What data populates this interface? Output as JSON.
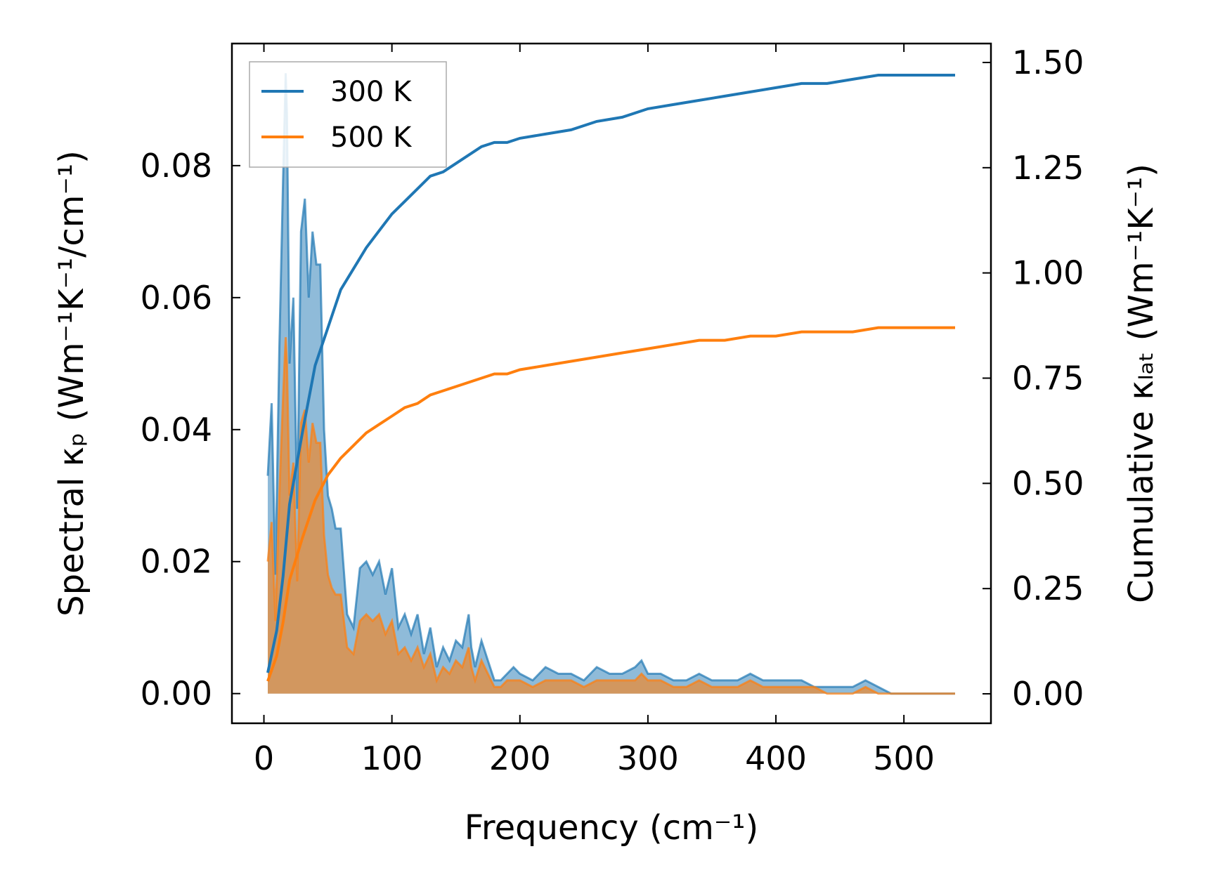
{
  "chart_data": {
    "type": "area",
    "xlabel": "Frequency (cm⁻¹)",
    "ylabel_left": "Spectral κₚ (Wm⁻¹K⁻¹/cm⁻¹)",
    "ylabel_right": "Cumulative κₗₐₜ (Wm⁻¹K⁻¹)",
    "xlim": [
      -25,
      568
    ],
    "ylim_left": [
      -0.0045,
      0.0985
    ],
    "ylim_right": [
      -0.07,
      1.545
    ],
    "x_ticks": [
      0,
      100,
      200,
      300,
      400,
      500
    ],
    "x_tick_labels": [
      "0",
      "100",
      "200",
      "300",
      "400",
      "500"
    ],
    "y_left_ticks": [
      0.0,
      0.02,
      0.04,
      0.06,
      0.08
    ],
    "y_left_tick_labels": [
      "0.00",
      "0.02",
      "0.04",
      "0.06",
      "0.08"
    ],
    "y_right_ticks": [
      0.0,
      0.25,
      0.5,
      0.75,
      1.0,
      1.25,
      1.5
    ],
    "y_right_tick_labels": [
      "0.00",
      "0.25",
      "0.50",
      "0.75",
      "1.00",
      "1.25",
      "1.50"
    ],
    "legend": {
      "position": "top-left",
      "entries": [
        "300 K",
        "500 K"
      ]
    },
    "grid": false,
    "series": [
      {
        "name": "300 K",
        "color": "#1f77b4",
        "fill_color": "#1f77b4",
        "spectral": {
          "x": [
            3,
            6,
            9,
            12,
            15,
            17,
            18,
            20,
            23,
            26,
            29,
            32,
            35,
            38,
            41,
            44,
            47,
            50,
            53,
            56,
            60,
            65,
            70,
            75,
            80,
            85,
            90,
            95,
            100,
            105,
            110,
            115,
            120,
            125,
            130,
            135,
            140,
            145,
            150,
            155,
            160,
            162,
            165,
            170,
            175,
            180,
            185,
            190,
            195,
            200,
            210,
            220,
            230,
            240,
            250,
            260,
            270,
            280,
            290,
            295,
            300,
            310,
            320,
            330,
            340,
            350,
            360,
            370,
            380,
            390,
            400,
            410,
            420,
            430,
            440,
            450,
            460,
            470,
            480,
            490,
            500,
            520,
            540
          ],
          "y": [
            0.033,
            0.044,
            0.018,
            0.052,
            0.078,
            0.094,
            0.088,
            0.05,
            0.06,
            0.028,
            0.07,
            0.075,
            0.06,
            0.07,
            0.065,
            0.065,
            0.04,
            0.03,
            0.028,
            0.025,
            0.025,
            0.012,
            0.01,
            0.019,
            0.02,
            0.018,
            0.02,
            0.015,
            0.019,
            0.01,
            0.012,
            0.009,
            0.012,
            0.006,
            0.01,
            0.004,
            0.007,
            0.005,
            0.008,
            0.007,
            0.012,
            0.007,
            0.004,
            0.008,
            0.005,
            0.002,
            0.002,
            0.003,
            0.004,
            0.003,
            0.002,
            0.004,
            0.003,
            0.003,
            0.002,
            0.004,
            0.003,
            0.003,
            0.004,
            0.005,
            0.003,
            0.003,
            0.002,
            0.002,
            0.003,
            0.002,
            0.002,
            0.002,
            0.003,
            0.002,
            0.002,
            0.002,
            0.002,
            0.001,
            0.001,
            0.001,
            0.001,
            0.002,
            0.001,
            0.0,
            0.0,
            0.0,
            0.0
          ]
        },
        "cumulative": {
          "x": [
            3,
            10,
            15,
            20,
            30,
            40,
            50,
            60,
            70,
            80,
            90,
            100,
            110,
            120,
            130,
            140,
            150,
            160,
            170,
            180,
            190,
            200,
            220,
            240,
            260,
            280,
            300,
            320,
            340,
            360,
            380,
            400,
            420,
            440,
            460,
            480,
            500,
            520,
            540
          ],
          "y": [
            0.05,
            0.15,
            0.28,
            0.45,
            0.62,
            0.78,
            0.87,
            0.96,
            1.01,
            1.06,
            1.1,
            1.14,
            1.17,
            1.2,
            1.23,
            1.24,
            1.26,
            1.28,
            1.3,
            1.31,
            1.31,
            1.32,
            1.33,
            1.34,
            1.36,
            1.37,
            1.39,
            1.4,
            1.41,
            1.42,
            1.43,
            1.44,
            1.45,
            1.45,
            1.46,
            1.47,
            1.47,
            1.47,
            1.47
          ]
        }
      },
      {
        "name": "500 K",
        "color": "#ff7f0e",
        "fill_color": "#ff7f0e",
        "spectral": {
          "x": [
            3,
            6,
            9,
            12,
            15,
            17,
            18,
            20,
            23,
            26,
            29,
            32,
            35,
            38,
            41,
            44,
            47,
            50,
            53,
            56,
            60,
            65,
            70,
            75,
            80,
            85,
            90,
            95,
            100,
            105,
            110,
            115,
            120,
            125,
            130,
            135,
            140,
            145,
            150,
            155,
            160,
            162,
            165,
            170,
            175,
            180,
            185,
            190,
            195,
            200,
            210,
            220,
            230,
            240,
            250,
            260,
            270,
            280,
            290,
            295,
            300,
            310,
            320,
            330,
            340,
            350,
            360,
            370,
            380,
            390,
            400,
            410,
            420,
            430,
            440,
            450,
            460,
            470,
            480,
            490,
            500,
            520,
            540
          ],
          "y": [
            0.02,
            0.026,
            0.011,
            0.03,
            0.045,
            0.054,
            0.05,
            0.03,
            0.035,
            0.017,
            0.041,
            0.043,
            0.035,
            0.041,
            0.038,
            0.038,
            0.024,
            0.018,
            0.016,
            0.015,
            0.015,
            0.007,
            0.006,
            0.011,
            0.012,
            0.011,
            0.012,
            0.009,
            0.011,
            0.006,
            0.007,
            0.005,
            0.007,
            0.004,
            0.006,
            0.002,
            0.004,
            0.003,
            0.005,
            0.004,
            0.007,
            0.004,
            0.002,
            0.005,
            0.003,
            0.001,
            0.001,
            0.002,
            0.002,
            0.002,
            0.001,
            0.002,
            0.002,
            0.002,
            0.001,
            0.002,
            0.002,
            0.002,
            0.002,
            0.003,
            0.002,
            0.002,
            0.001,
            0.001,
            0.002,
            0.001,
            0.001,
            0.001,
            0.002,
            0.001,
            0.001,
            0.001,
            0.001,
            0.001,
            0.0,
            0.0,
            0.0,
            0.001,
            0.0,
            0.0,
            0.0,
            0.0,
            0.0
          ]
        },
        "cumulative": {
          "x": [
            3,
            10,
            15,
            20,
            30,
            40,
            50,
            60,
            70,
            80,
            90,
            100,
            110,
            120,
            130,
            140,
            150,
            160,
            170,
            180,
            190,
            200,
            220,
            240,
            260,
            280,
            300,
            320,
            340,
            360,
            380,
            400,
            420,
            440,
            460,
            480,
            500,
            520,
            540
          ],
          "y": [
            0.03,
            0.09,
            0.17,
            0.27,
            0.37,
            0.46,
            0.52,
            0.56,
            0.59,
            0.62,
            0.64,
            0.66,
            0.68,
            0.69,
            0.71,
            0.72,
            0.73,
            0.74,
            0.75,
            0.76,
            0.76,
            0.77,
            0.78,
            0.79,
            0.8,
            0.81,
            0.82,
            0.83,
            0.84,
            0.84,
            0.85,
            0.85,
            0.86,
            0.86,
            0.86,
            0.87,
            0.87,
            0.87,
            0.87
          ]
        }
      }
    ]
  }
}
